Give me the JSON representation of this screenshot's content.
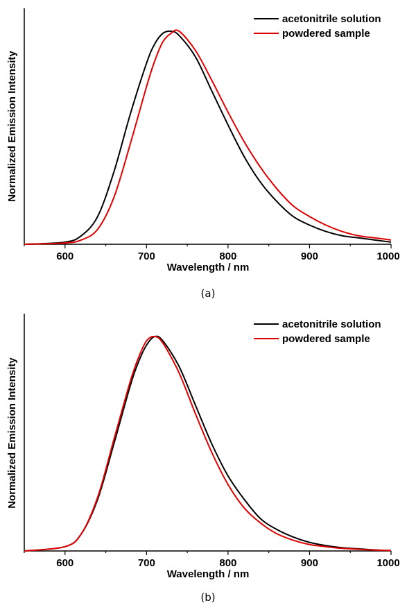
{
  "chart_data": [
    {
      "type": "line",
      "caption": "(a)",
      "xlabel": "Wavelength / nm",
      "ylabel": "Normalized Emission Intensity",
      "xlim": [
        550,
        1000
      ],
      "ylim": [
        0,
        1.0
      ],
      "xticks": [
        600,
        700,
        800,
        900,
        1000
      ],
      "yticks_labeled": false,
      "legend_position": "top-right",
      "series": [
        {
          "name": "acetonitrile solution",
          "color": "#000000",
          "x": [
            550,
            600,
            620,
            640,
            660,
            680,
            700,
            710,
            720,
            730,
            740,
            760,
            780,
            800,
            820,
            840,
            860,
            880,
            900,
            920,
            940,
            960,
            980,
            1000
          ],
          "y": [
            0,
            0.01,
            0.04,
            0.13,
            0.34,
            0.61,
            0.85,
            0.94,
            0.99,
            1.0,
            0.98,
            0.88,
            0.72,
            0.56,
            0.41,
            0.29,
            0.2,
            0.13,
            0.09,
            0.06,
            0.04,
            0.03,
            0.02,
            0.01
          ]
        },
        {
          "name": "powdered sample",
          "color": "#e00000",
          "x": [
            550,
            600,
            620,
            640,
            660,
            680,
            700,
            710,
            720,
            730,
            740,
            760,
            780,
            800,
            820,
            840,
            860,
            880,
            900,
            920,
            940,
            960,
            980,
            1000
          ],
          "y": [
            0,
            0.006,
            0.02,
            0.07,
            0.22,
            0.47,
            0.74,
            0.86,
            0.95,
            0.99,
            1.0,
            0.91,
            0.77,
            0.62,
            0.48,
            0.36,
            0.26,
            0.18,
            0.13,
            0.09,
            0.06,
            0.04,
            0.03,
            0.02
          ]
        }
      ]
    },
    {
      "type": "line",
      "caption": "(b)",
      "xlabel": "Wavelength / nm",
      "ylabel": "Normalized Emission Intensity",
      "xlim": [
        550,
        1000
      ],
      "ylim": [
        0,
        1.0
      ],
      "xticks": [
        600,
        700,
        800,
        900,
        1000
      ],
      "yticks_labeled": false,
      "legend_position": "top-right",
      "series": [
        {
          "name": "acetonitrile solution",
          "color": "#000000",
          "x": [
            550,
            600,
            620,
            640,
            660,
            680,
            690,
            700,
            710,
            720,
            740,
            760,
            780,
            800,
            820,
            840,
            860,
            880,
            900,
            920,
            940,
            960,
            980,
            1000
          ],
          "y": [
            0,
            0.02,
            0.08,
            0.24,
            0.5,
            0.77,
            0.88,
            0.96,
            1.0,
            0.98,
            0.86,
            0.68,
            0.5,
            0.35,
            0.24,
            0.15,
            0.1,
            0.065,
            0.04,
            0.025,
            0.015,
            0.01,
            0.005,
            0.002
          ]
        },
        {
          "name": "powdered sample",
          "color": "#e00000",
          "x": [
            550,
            600,
            620,
            640,
            660,
            680,
            690,
            700,
            710,
            720,
            740,
            760,
            780,
            800,
            820,
            840,
            860,
            880,
            900,
            920,
            940,
            960,
            980,
            1000
          ],
          "y": [
            0,
            0.02,
            0.08,
            0.25,
            0.52,
            0.79,
            0.9,
            0.98,
            1.0,
            0.97,
            0.83,
            0.64,
            0.46,
            0.31,
            0.2,
            0.13,
            0.08,
            0.05,
            0.03,
            0.02,
            0.012,
            0.008,
            0.004,
            0.002
          ]
        }
      ]
    }
  ]
}
